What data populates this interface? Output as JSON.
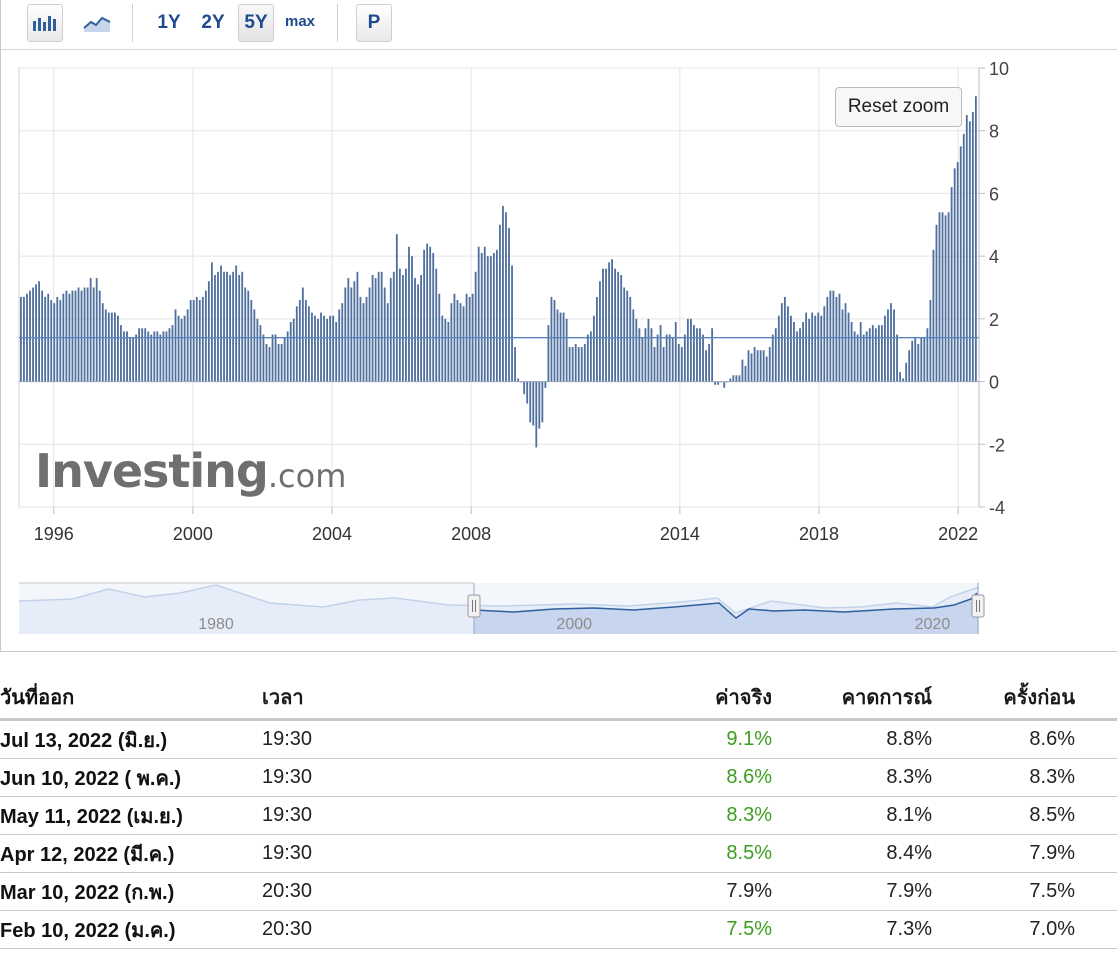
{
  "toolbar": {
    "range_buttons": [
      "1Y",
      "2Y",
      "5Y"
    ],
    "max_label": "max",
    "p_label": "P",
    "active_range": "5Y"
  },
  "reset_zoom_label": "Reset zoom",
  "watermark": {
    "main": "Investing",
    "domain": ".com"
  },
  "colors": {
    "bar": "#4f6f9e",
    "navigator_fill": "#c7d5ee",
    "navigator_line": "#2f5f9e",
    "positive_value": "#3c9e1f",
    "grid": "#e4e4e4"
  },
  "chart_data": {
    "type": "bar",
    "title": "",
    "ylim": [
      -4,
      10
    ],
    "y_ticks": [
      "10",
      "8",
      "6",
      "4",
      "2",
      "0",
      "-2",
      "-4"
    ],
    "x_tick_labels": [
      {
        "label": "1996",
        "year": 1996
      },
      {
        "label": "2000",
        "year": 2000
      },
      {
        "label": "2004",
        "year": 2004
      },
      {
        "label": "2008",
        "year": 2008
      },
      {
        "label": "2014",
        "year": 2014
      },
      {
        "label": "2018",
        "year": 2018
      },
      {
        "label": "2022",
        "year": 2022
      }
    ],
    "x_range": [
      1995,
      2022.6
    ],
    "baseline_value": 1.4,
    "series": [
      {
        "values": [
          2.7,
          2.7,
          2.8,
          2.9,
          3.0,
          3.1,
          3.2,
          2.9,
          2.7,
          2.8,
          2.6,
          2.5,
          2.7,
          2.6,
          2.8,
          2.9,
          2.8,
          2.9,
          2.9,
          3.0,
          2.9,
          3.0,
          3.0,
          3.3,
          3.0,
          3.3,
          2.9,
          2.5,
          2.3,
          2.2,
          2.2,
          2.2,
          2.1,
          1.8,
          1.6,
          1.6,
          1.4,
          1.4,
          1.5,
          1.7,
          1.7,
          1.7,
          1.6,
          1.5,
          1.6,
          1.6,
          1.5,
          1.6,
          1.6,
          1.7,
          1.8,
          2.3,
          2.1,
          2.0,
          2.1,
          2.3,
          2.6,
          2.6,
          2.7,
          2.6,
          2.7,
          2.9,
          3.2,
          3.8,
          3.4,
          3.5,
          3.7,
          3.5,
          3.5,
          3.4,
          3.5,
          3.7,
          3.4,
          3.5,
          3.0,
          2.9,
          2.6,
          2.3,
          2.0,
          1.8,
          1.5,
          1.2,
          1.1,
          1.5,
          1.5,
          1.2,
          1.2,
          1.4,
          1.6,
          1.9,
          2.0,
          2.4,
          2.6,
          3.0,
          2.6,
          2.4,
          2.2,
          2.1,
          2.0,
          2.2,
          2.1,
          2.0,
          2.1,
          2.1,
          1.9,
          2.3,
          2.5,
          3.0,
          3.3,
          3.0,
          3.2,
          3.5,
          2.7,
          2.5,
          2.7,
          3.0,
          3.4,
          3.3,
          3.5,
          3.5,
          3.0,
          2.5,
          3.3,
          3.5,
          4.7,
          3.6,
          3.4,
          3.6,
          4.3,
          4.0,
          3.3,
          3.1,
          3.4,
          4.2,
          4.4,
          4.3,
          4.1,
          3.6,
          2.8,
          2.1,
          2.0,
          1.9,
          2.5,
          2.8,
          2.6,
          2.5,
          2.4,
          2.8,
          2.7,
          2.8,
          3.5,
          4.3,
          4.1,
          4.3,
          4.0,
          4.0,
          4.1,
          4.2,
          5.0,
          5.6,
          5.4,
          4.9,
          3.7,
          1.1,
          0.1,
          0.0,
          -0.4,
          -0.7,
          -1.3,
          -1.4,
          -2.1,
          -1.5,
          -1.3,
          -0.2,
          1.8,
          2.7,
          2.6,
          2.3,
          2.2,
          2.2,
          2.0,
          1.1,
          1.1,
          1.2,
          1.1,
          1.1,
          1.2,
          1.5,
          1.6,
          2.1,
          2.7,
          3.2,
          3.6,
          3.6,
          3.8,
          3.9,
          3.6,
          3.5,
          3.4,
          3.0,
          2.9,
          2.7,
          2.3,
          2.0,
          1.7,
          1.4,
          1.7,
          2.0,
          1.7,
          1.1,
          1.5,
          1.8,
          1.1,
          1.5,
          1.5,
          1.4,
          1.9,
          1.2,
          1.1,
          1.5,
          2.0,
          2.0,
          1.8,
          1.7,
          1.7,
          1.5,
          1.0,
          1.2,
          1.7,
          -0.1,
          -0.1,
          0.0,
          -0.2,
          0.0,
          0.1,
          0.2,
          0.2,
          0.2,
          0.7,
          0.5,
          1.0,
          0.9,
          1.1,
          1.0,
          1.0,
          1.0,
          0.8,
          1.1,
          1.5,
          1.7,
          2.1,
          2.5,
          2.7,
          2.4,
          2.1,
          1.9,
          1.6,
          1.7,
          1.9,
          2.2,
          2.0,
          2.2,
          2.1,
          2.2,
          2.1,
          2.4,
          2.7,
          2.9,
          2.9,
          2.7,
          2.8,
          2.3,
          2.5,
          2.2,
          1.9,
          1.6,
          1.5,
          1.9,
          1.5,
          1.6,
          1.7,
          1.8,
          1.7,
          1.8,
          1.8,
          2.1,
          2.3,
          2.5,
          2.3,
          1.5,
          0.3,
          0.1,
          0.6,
          1.0,
          1.3,
          1.4,
          1.2,
          1.4,
          1.4,
          1.7,
          2.6,
          4.2,
          5.0,
          5.4,
          5.4,
          5.3,
          5.4,
          6.2,
          6.8,
          7.0,
          7.5,
          7.9,
          8.5,
          8.3,
          8.6,
          9.1
        ]
      }
    ]
  },
  "navigator": {
    "labels": [
      {
        "label": "1980",
        "year": 1980
      },
      {
        "label": "2000",
        "year": 2000
      },
      {
        "label": "2020",
        "year": 2020
      }
    ]
  },
  "table": {
    "headers": {
      "date": "วันที่ออก",
      "time": "เวลา",
      "actual": "ค่าจริง",
      "forecast": "คาดการณ์",
      "previous": "ครั้งก่อน"
    },
    "rows": [
      {
        "date": "Jul 13, 2022 (มิ.ย.)",
        "time": "19:30",
        "actual": "9.1%",
        "actual_green": true,
        "forecast": "8.8%",
        "previous": "8.6%"
      },
      {
        "date": "Jun 10, 2022 ( พ.ค.)",
        "time": "19:30",
        "actual": "8.6%",
        "actual_green": true,
        "forecast": "8.3%",
        "previous": "8.3%"
      },
      {
        "date": "May 11, 2022 (เม.ย.)",
        "time": "19:30",
        "actual": "8.3%",
        "actual_green": true,
        "forecast": "8.1%",
        "previous": "8.5%"
      },
      {
        "date": "Apr 12, 2022 (มี.ค.)",
        "time": "19:30",
        "actual": "8.5%",
        "actual_green": true,
        "forecast": "8.4%",
        "previous": "7.9%"
      },
      {
        "date": "Mar 10, 2022 (ก.พ.)",
        "time": "20:30",
        "actual": "7.9%",
        "actual_green": false,
        "forecast": "7.9%",
        "previous": "7.5%"
      },
      {
        "date": "Feb 10, 2022 (ม.ค.)",
        "time": "20:30",
        "actual": "7.5%",
        "actual_green": true,
        "forecast": "7.3%",
        "previous": "7.0%"
      }
    ]
  }
}
